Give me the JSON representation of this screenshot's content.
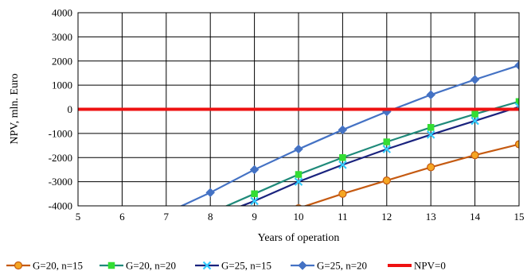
{
  "chart_data": {
    "type": "line",
    "title": "",
    "xlabel": "Years of operation",
    "ylabel": "NPV, mln. Euro",
    "xlim": [
      5,
      15
    ],
    "ylim": [
      -4000,
      4000
    ],
    "x_ticks": [
      5,
      6,
      7,
      8,
      9,
      10,
      11,
      12,
      13,
      14,
      15
    ],
    "y_ticks": [
      -4000,
      -3000,
      -2000,
      -1000,
      0,
      1000,
      2000,
      3000,
      4000
    ],
    "grid": true,
    "legend_position": "bottom",
    "series": [
      {
        "name": "G=20, n=15",
        "color": "#c55a11",
        "marker": "circle",
        "marker_fill": "#f5a623",
        "x": [
          10,
          11,
          12,
          13,
          14,
          15
        ],
        "y": [
          -4100,
          -3500,
          -2950,
          -2400,
          -1900,
          -1450
        ]
      },
      {
        "name": "G=20, n=20",
        "color": "#1f8a7a",
        "marker": "square",
        "marker_fill": "#33dd33",
        "x": [
          8,
          9,
          10,
          11,
          12,
          13,
          14,
          15
        ],
        "y": [
          -4300,
          -3500,
          -2700,
          -2000,
          -1350,
          -750,
          -200,
          320
        ]
      },
      {
        "name": "G=25, n=15",
        "color": "#1a237e",
        "marker": "x",
        "marker_fill": "#33ccff",
        "x": [
          8,
          9,
          10,
          11,
          12,
          13,
          14,
          15
        ],
        "y": [
          -4500,
          -3800,
          -3000,
          -2300,
          -1650,
          -1050,
          -480,
          100
        ]
      },
      {
        "name": "G=25, n=20",
        "color": "#4472c4",
        "marker": "diamond",
        "marker_fill": "#4472c4",
        "x": [
          7,
          8,
          9,
          10,
          11,
          12,
          13,
          14,
          15
        ],
        "y": [
          -4300,
          -3450,
          -2500,
          -1650,
          -850,
          -100,
          600,
          1230,
          1820
        ]
      },
      {
        "name": "NPV=0",
        "color": "#ee1111",
        "marker": "none",
        "marker_fill": "#ee1111",
        "x": [
          5,
          15
        ],
        "y": [
          0,
          0
        ]
      }
    ]
  }
}
